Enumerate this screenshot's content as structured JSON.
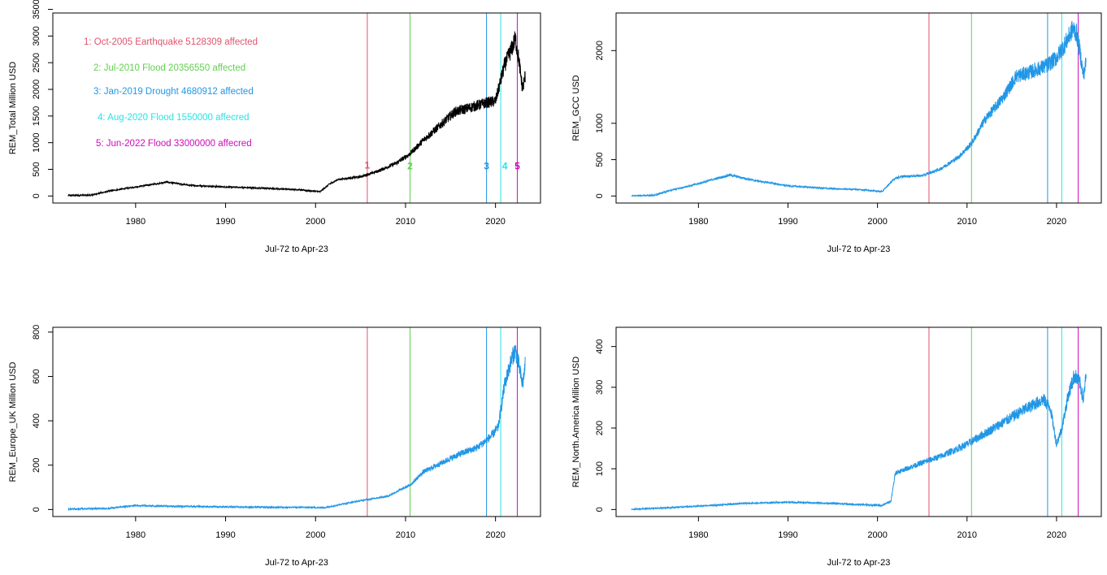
{
  "event_colors": [
    "#df536b",
    "#61d04f",
    "#2297e6",
    "#28e2e5",
    "#cd0bbc"
  ],
  "events": [
    {
      "marker": "1",
      "date": 2005.75,
      "label": "1:  Oct-2005 Earthquake  5128309  affected",
      "color": "#df536b"
    },
    {
      "marker": "2",
      "date": 2010.5,
      "label": "2:   Jul-2010 Flood 20356550 affected",
      "color": "#61d04f"
    },
    {
      "marker": "3",
      "date": 2019.0,
      "label": "3: Jan-2019 Drought 4680912 affected",
      "color": "#2297e6"
    },
    {
      "marker": "4",
      "date": 2020.58,
      "label": "4: Aug-2020 Flood 1550000 affecred",
      "color": "#28e2e5"
    },
    {
      "marker": "5",
      "date": 2022.42,
      "label": "5: Jun-2022 Flood 33000000 affecred",
      "color": "#cd0bbc"
    }
  ],
  "chart_data": [
    {
      "type": "line",
      "xlabel": "Jul-72 to Apr-23",
      "ylabel": "REM_Total Million USD",
      "xlim": [
        1972.5,
        2023.3
      ],
      "x_ticks": [
        1980,
        1990,
        2000,
        2010,
        2020
      ],
      "y_ticks": [
        0,
        500,
        1000,
        1500,
        2000,
        2500,
        3000,
        3500
      ],
      "line_color": "#000000",
      "show_markers": true,
      "show_legend": true,
      "x": [
        1972.5,
        1975,
        1977,
        1980,
        1983.5,
        1986,
        1990,
        1995,
        1998,
        2000.5,
        2001.5,
        2002.5,
        2004,
        2005,
        2007,
        2009,
        2010.5,
        2012,
        2014,
        2015.5,
        2017,
        2018,
        2019,
        2020,
        2021,
        2021.8,
        2022.2,
        2022.6,
        2023.0,
        2023.3
      ],
      "values": [
        10,
        15,
        90,
        170,
        260,
        200,
        170,
        140,
        120,
        80,
        220,
        310,
        340,
        360,
        470,
        620,
        790,
        1050,
        1350,
        1580,
        1650,
        1700,
        1750,
        1780,
        2450,
        2760,
        2950,
        2550,
        2000,
        2250
      ]
    },
    {
      "type": "line",
      "xlabel": "Jul-72 to Apr-23",
      "ylabel": "REM_GCC USD",
      "xlim": [
        1972.5,
        2023.3
      ],
      "x_ticks": [
        1980,
        1990,
        2000,
        2010,
        2020
      ],
      "y_ticks": [
        0,
        500,
        1000,
        2000
      ],
      "line_color": "#2297e6",
      "show_markers": false,
      "show_legend": false,
      "x": [
        1972.5,
        1975,
        1977,
        1980,
        1983.5,
        1986,
        1990,
        1995,
        1998,
        2000.5,
        2002,
        2003,
        2005,
        2007,
        2009,
        2010.5,
        2012,
        2014,
        2015.5,
        2017,
        2018,
        2019,
        2020,
        2021,
        2021.8,
        2022.2,
        2022.6,
        2023.0,
        2023.3
      ],
      "values": [
        0,
        10,
        80,
        170,
        290,
        220,
        140,
        100,
        90,
        60,
        250,
        270,
        280,
        370,
        530,
        720,
        1050,
        1350,
        1650,
        1700,
        1750,
        1800,
        1900,
        2100,
        2300,
        2250,
        2000,
        1650,
        1850
      ]
    },
    {
      "type": "line",
      "xlabel": "Jul-72 to Apr-23",
      "ylabel": "REM_Europe_UK Million USD",
      "xlim": [
        1972.5,
        2023.3
      ],
      "x_ticks": [
        1980,
        1990,
        2000,
        2010,
        2020
      ],
      "y_ticks": [
        0,
        200,
        400,
        600,
        800
      ],
      "line_color": "#2297e6",
      "show_markers": false,
      "show_legend": false,
      "x": [
        1972.5,
        1977,
        1980,
        1985,
        1990,
        1995,
        1998,
        2001,
        2003,
        2005,
        2008,
        2010.5,
        2012,
        2014,
        2016,
        2018,
        2019.5,
        2020.3,
        2021,
        2021.8,
        2022.2,
        2022.6,
        2023.0,
        2023.3
      ],
      "values": [
        2,
        5,
        18,
        14,
        12,
        10,
        10,
        8,
        25,
        40,
        60,
        110,
        170,
        210,
        250,
        280,
        330,
        370,
        560,
        680,
        720,
        650,
        560,
        650
      ]
    },
    {
      "type": "line",
      "xlabel": "Jul-72 to Apr-23",
      "ylabel": "REM_North.America  Million USD",
      "xlim": [
        1972.5,
        2023.3
      ],
      "x_ticks": [
        1980,
        1990,
        2000,
        2010,
        2020
      ],
      "y_ticks": [
        0,
        100,
        200,
        300,
        400
      ],
      "line_color": "#2297e6",
      "show_markers": false,
      "show_legend": false,
      "x": [
        1972.5,
        1977,
        1980,
        1985,
        1990,
        1995,
        1998,
        2000.5,
        2001.5,
        2002,
        2005,
        2007,
        2010,
        2013,
        2016,
        2018.5,
        2019.3,
        2020,
        2020.6,
        2021.3,
        2022,
        2022.6,
        2023.0,
        2023.3
      ],
      "values": [
        0,
        5,
        8,
        15,
        18,
        15,
        12,
        10,
        20,
        90,
        115,
        130,
        160,
        200,
        240,
        270,
        250,
        160,
        200,
        280,
        330,
        310,
        270,
        330
      ]
    }
  ]
}
